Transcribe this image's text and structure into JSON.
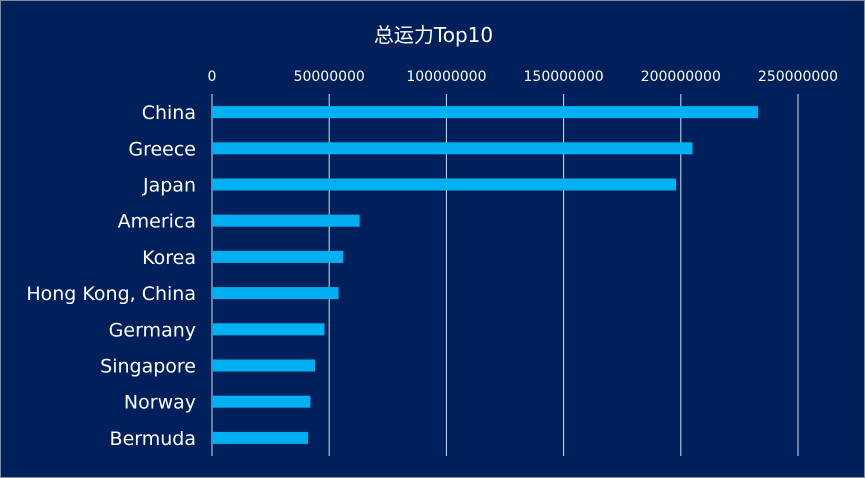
{
  "colors": {
    "background": "#00205b",
    "bar": "#00b0f0",
    "grid": "#ffffff",
    "text": "#ffffff"
  },
  "chart_data": {
    "type": "bar",
    "orientation": "horizontal",
    "title": "总运力Top10",
    "xlim": [
      0,
      250000000
    ],
    "x_ticks": [
      0,
      50000000,
      100000000,
      150000000,
      200000000,
      250000000
    ],
    "x_tick_labels": [
      "0",
      "50000000",
      "100000000",
      "150000000",
      "200000000",
      "250000000"
    ],
    "x_axis_position": "top",
    "grid": true,
    "legend": "none",
    "categories": [
      "China",
      "Greece",
      "Japan",
      "America",
      "Korea",
      "Hong Kong, China",
      "Germany",
      "Singapore",
      "Norway",
      "Bermuda"
    ],
    "values": [
      233000000,
      205000000,
      198000000,
      63000000,
      56000000,
      54000000,
      48000000,
      44000000,
      42000000,
      41000000
    ]
  }
}
